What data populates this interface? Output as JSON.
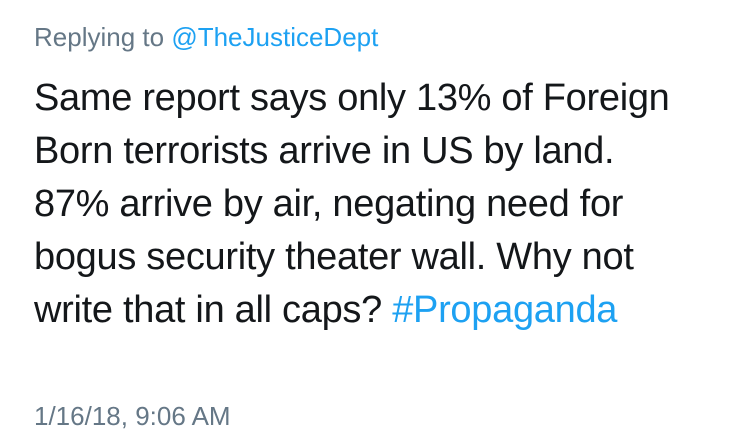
{
  "reply": {
    "prefix": "Replying to",
    "handle": "@TheJusticeDept"
  },
  "tweet": {
    "lines": [
      "Same report says only 13% of Foreign",
      "Born terrorists arrive in US by land.",
      "87% arrive by air, negating need for",
      "bogus security theater wall. Why not",
      "write that in all caps? "
    ],
    "hashtag": "#Propaganda"
  },
  "timestamp": "1/16/18, 9:06 AM",
  "colors": {
    "text": "#14171a",
    "secondary": "#657786",
    "link": "#1da1f2",
    "background": "#ffffff"
  }
}
